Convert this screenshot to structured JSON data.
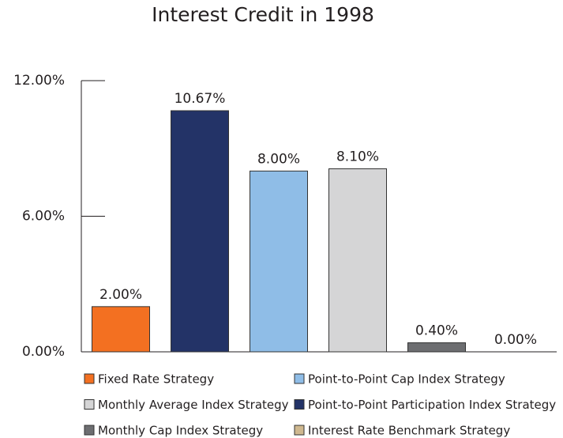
{
  "chart_data": {
    "type": "bar",
    "title": "Interest Credit in 1998",
    "categories": [
      null,
      null,
      null,
      null,
      null,
      null
    ],
    "series": [
      {
        "name": "Fixed Rate Strategy",
        "color": "#f37021",
        "values": [
          2.0,
          null,
          null,
          null,
          null,
          null
        ],
        "value_labels": [
          "2.00%",
          null,
          null,
          null,
          null,
          null
        ]
      },
      {
        "name": "Point-to-Point Cap Index Strategy",
        "color": "#8fbde7",
        "values": [
          null,
          null,
          8.0,
          null,
          null,
          null
        ],
        "value_labels": [
          null,
          null,
          "8.00%",
          null,
          null,
          null
        ]
      },
      {
        "name": "Monthly Average Index Strategy",
        "color": "#d5d5d6",
        "values": [
          null,
          null,
          null,
          8.1,
          null,
          null
        ],
        "value_labels": [
          null,
          null,
          null,
          "8.10%",
          null,
          null
        ]
      },
      {
        "name": "Point-to-Point Participation Index Strategy",
        "color": "#233367",
        "values": [
          null,
          10.67,
          null,
          null,
          null,
          null
        ],
        "value_labels": [
          null,
          "10.67%",
          null,
          null,
          null,
          null
        ]
      },
      {
        "name": "Monthly Cap Index Strategy",
        "color": "#6d6e71",
        "values": [
          null,
          null,
          null,
          null,
          0.4,
          null
        ],
        "value_labels": [
          null,
          null,
          null,
          null,
          "0.40%",
          null
        ]
      },
      {
        "name": "Interest Rate Benchmark Strategy",
        "color": "#cfb88f",
        "values": [
          null,
          null,
          null,
          null,
          null,
          0.0
        ],
        "value_labels": [
          null,
          null,
          null,
          null,
          null,
          "0.00%"
        ]
      }
    ],
    "ylim": [
      0,
      12
    ],
    "yticks": [
      {
        "value": 0,
        "label": "0.00%"
      },
      {
        "value": 6,
        "label": "6.00%"
      },
      {
        "value": 12,
        "label": "12.00%"
      }
    ],
    "grid": false
  }
}
